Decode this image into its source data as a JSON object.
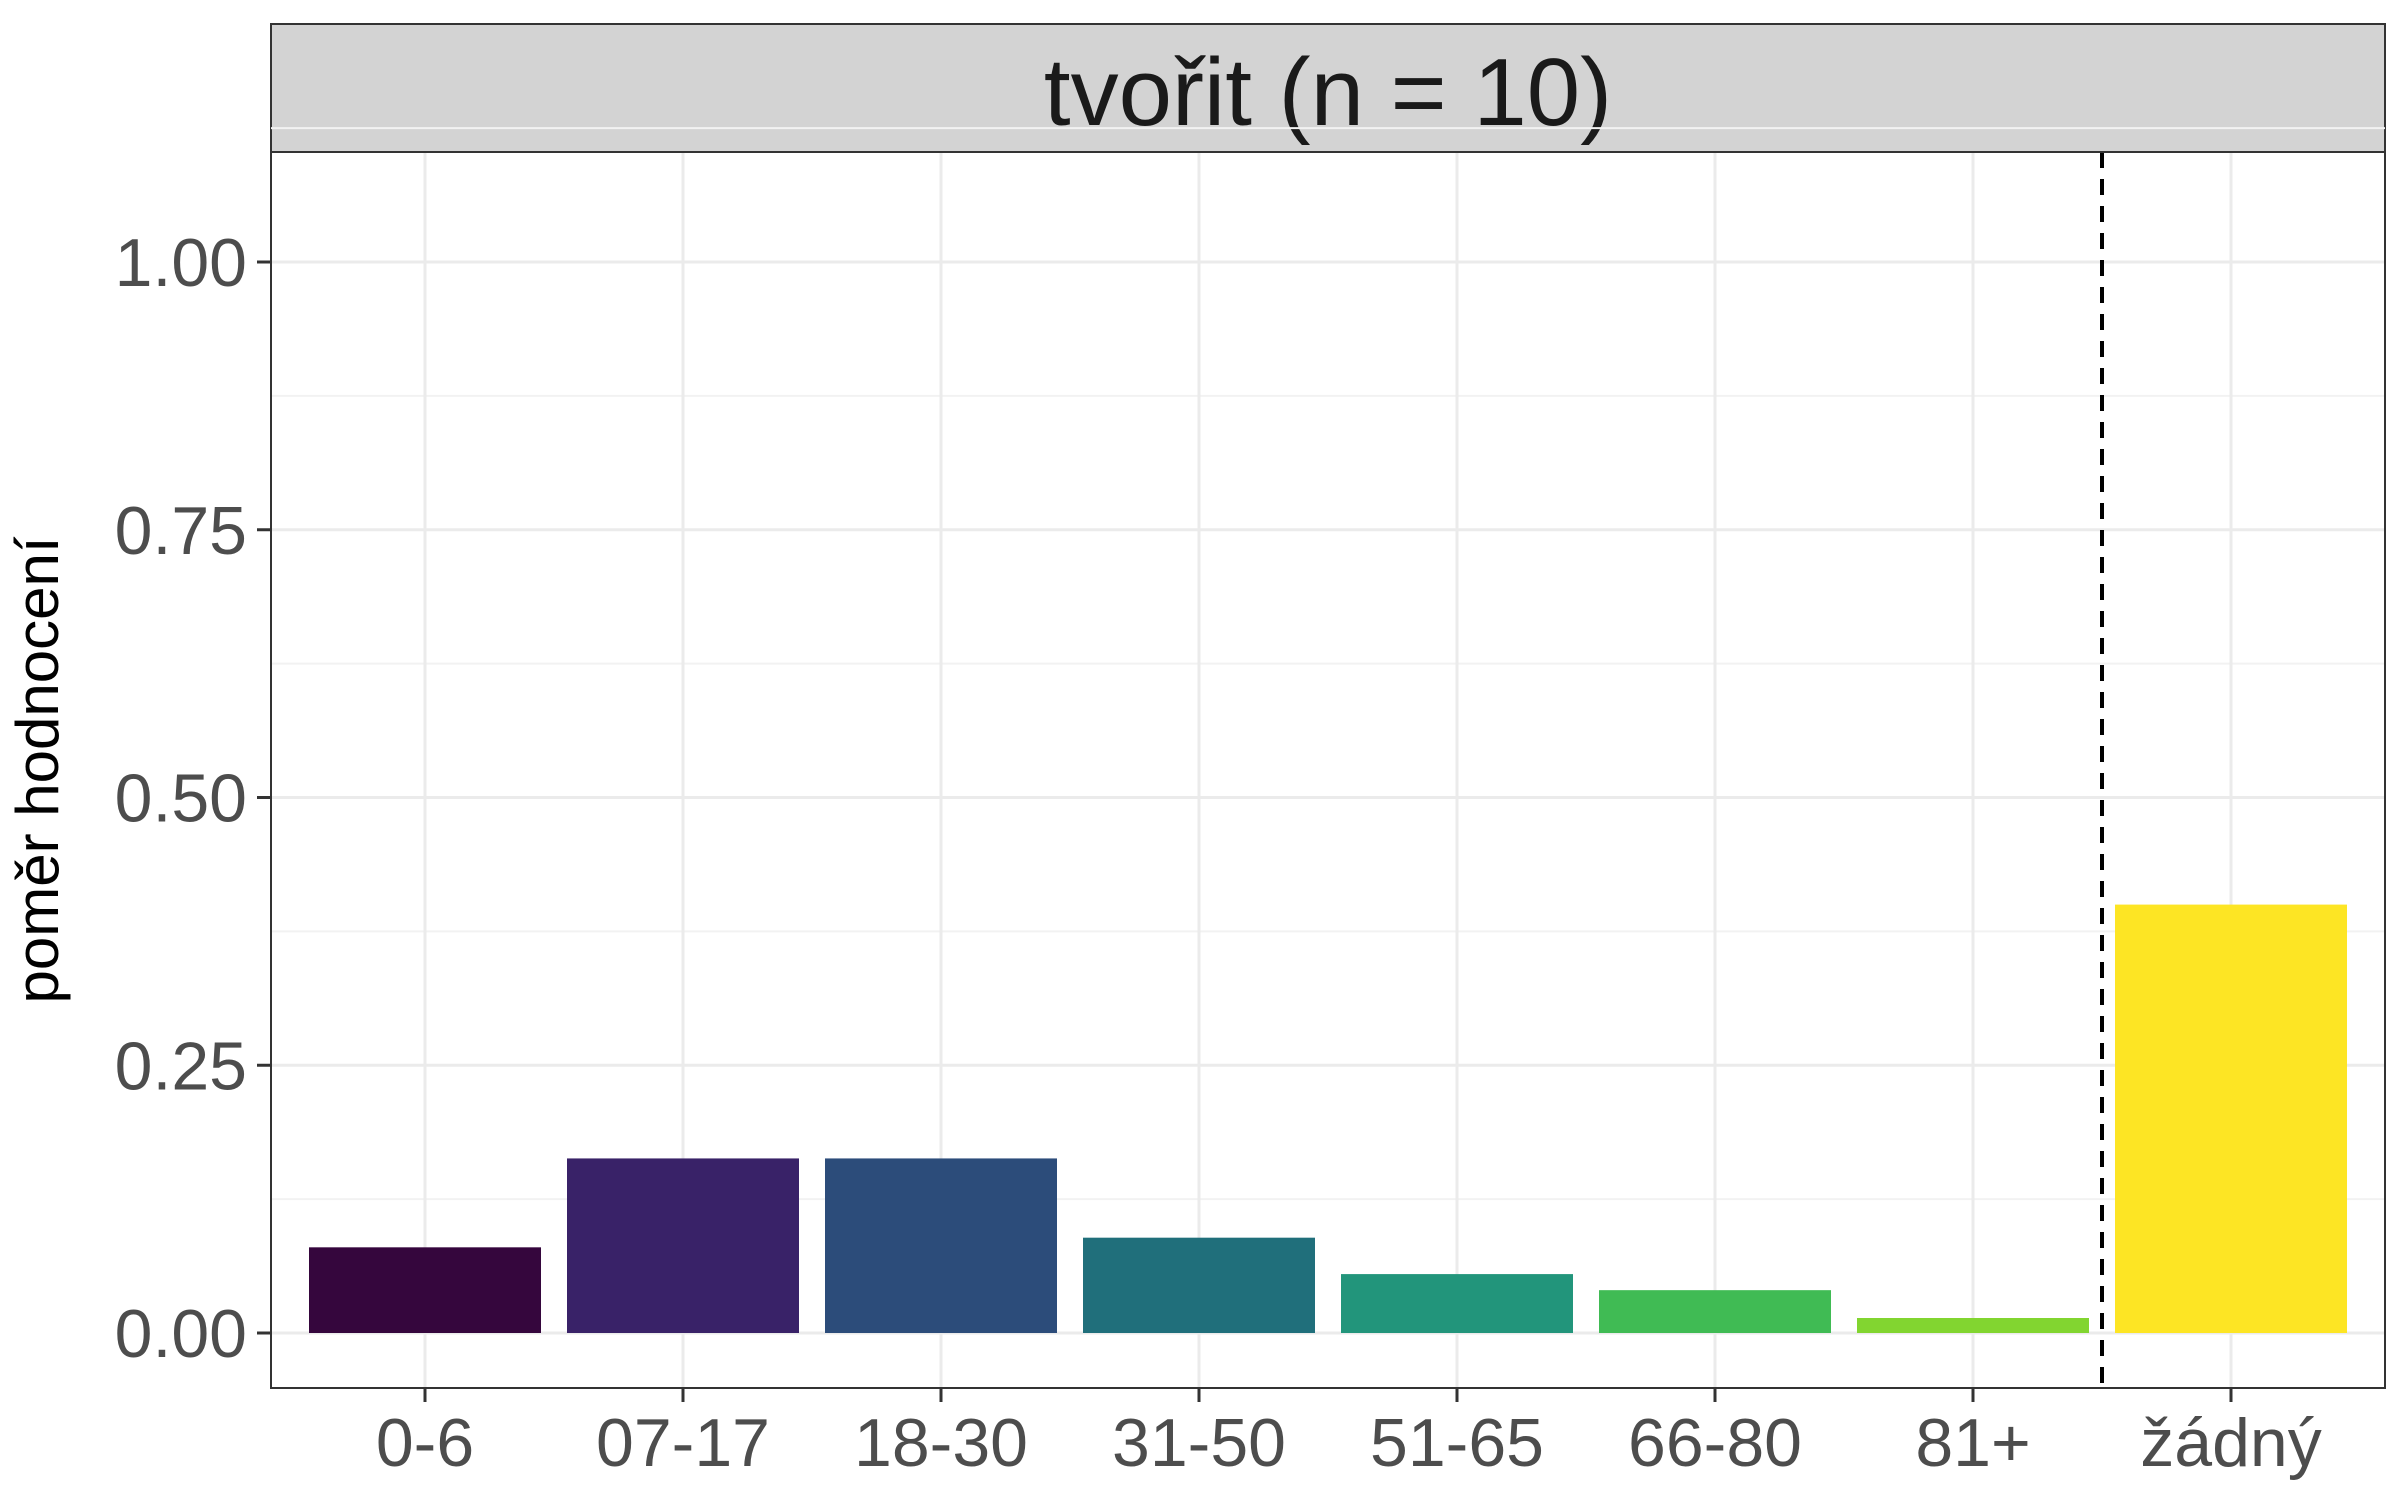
{
  "chart_data": {
    "type": "bar",
    "facet_title": "tvořit (n = 10)",
    "ylabel": "poměr hodnocení",
    "xlabel": "",
    "ylim": [
      -0.05,
      1.1
    ],
    "y_ticks": [
      0,
      0.25,
      0.5,
      0.75,
      1
    ],
    "y_tick_labels": [
      "0.00",
      "0.25",
      "0.50",
      "0.75",
      "1.00"
    ],
    "categories": [
      "0-6",
      "07-17",
      "18-30",
      "31-50",
      "51-65",
      "66-80",
      "81+",
      "žádný"
    ],
    "values": [
      0.08,
      0.163,
      0.163,
      0.089,
      0.055,
      0.04,
      0.014,
      0.4
    ],
    "colors": [
      "#35063d",
      "#392268",
      "#2c4c7a",
      "#206f7b",
      "#22957b",
      "#40bb54",
      "#82d530",
      "#fde524"
    ],
    "reference_line": {
      "between": [
        "81+",
        "žádný"
      ],
      "style": "dashed"
    },
    "grid": true,
    "legend": "none",
    "theme": {
      "panel_border": "#333333",
      "strip_fill": "#d3d3d3",
      "grid_major": "#ebebeb",
      "grid_minor": "#f2f2f2",
      "tick_color": "#333333",
      "tick_label_color": "#4d4d4d",
      "vline_color": "#000000"
    }
  }
}
